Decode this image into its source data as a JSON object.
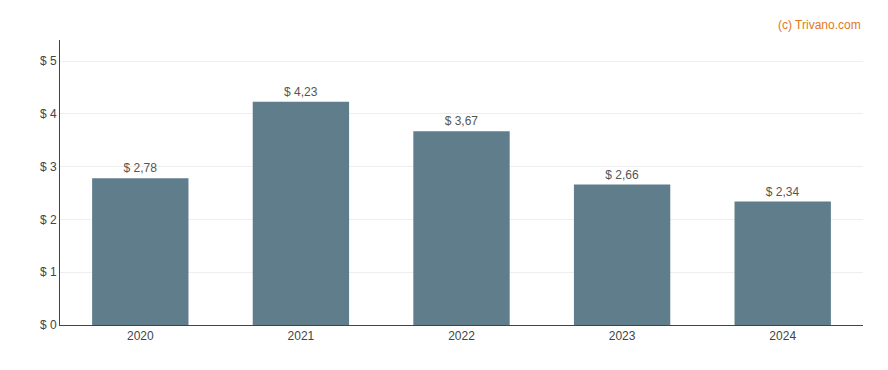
{
  "chart_data": {
    "type": "bar",
    "categories": [
      "2020",
      "2021",
      "2022",
      "2023",
      "2024"
    ],
    "values": [
      2.78,
      4.23,
      3.67,
      2.66,
      2.34
    ],
    "value_labels": [
      "$ 2,78",
      "$ 4,23",
      "$ 3,67",
      "$ 2,66",
      "$ 2,34"
    ],
    "data_labels": true,
    "color": "#5f7d8b",
    "ylim": [
      0,
      5.4
    ],
    "yticks": [
      {
        "value": 0,
        "label": "$ 0"
      },
      {
        "value": 1,
        "label": "$ 1"
      },
      {
        "value": 2,
        "label": "$ 2"
      },
      {
        "value": 3,
        "label": "$ 3"
      },
      {
        "value": 4,
        "label": "$ 4"
      },
      {
        "value": 5,
        "label": "$ 5"
      }
    ],
    "grid": true,
    "annotations": [
      "(c) Trivano.com"
    ]
  }
}
